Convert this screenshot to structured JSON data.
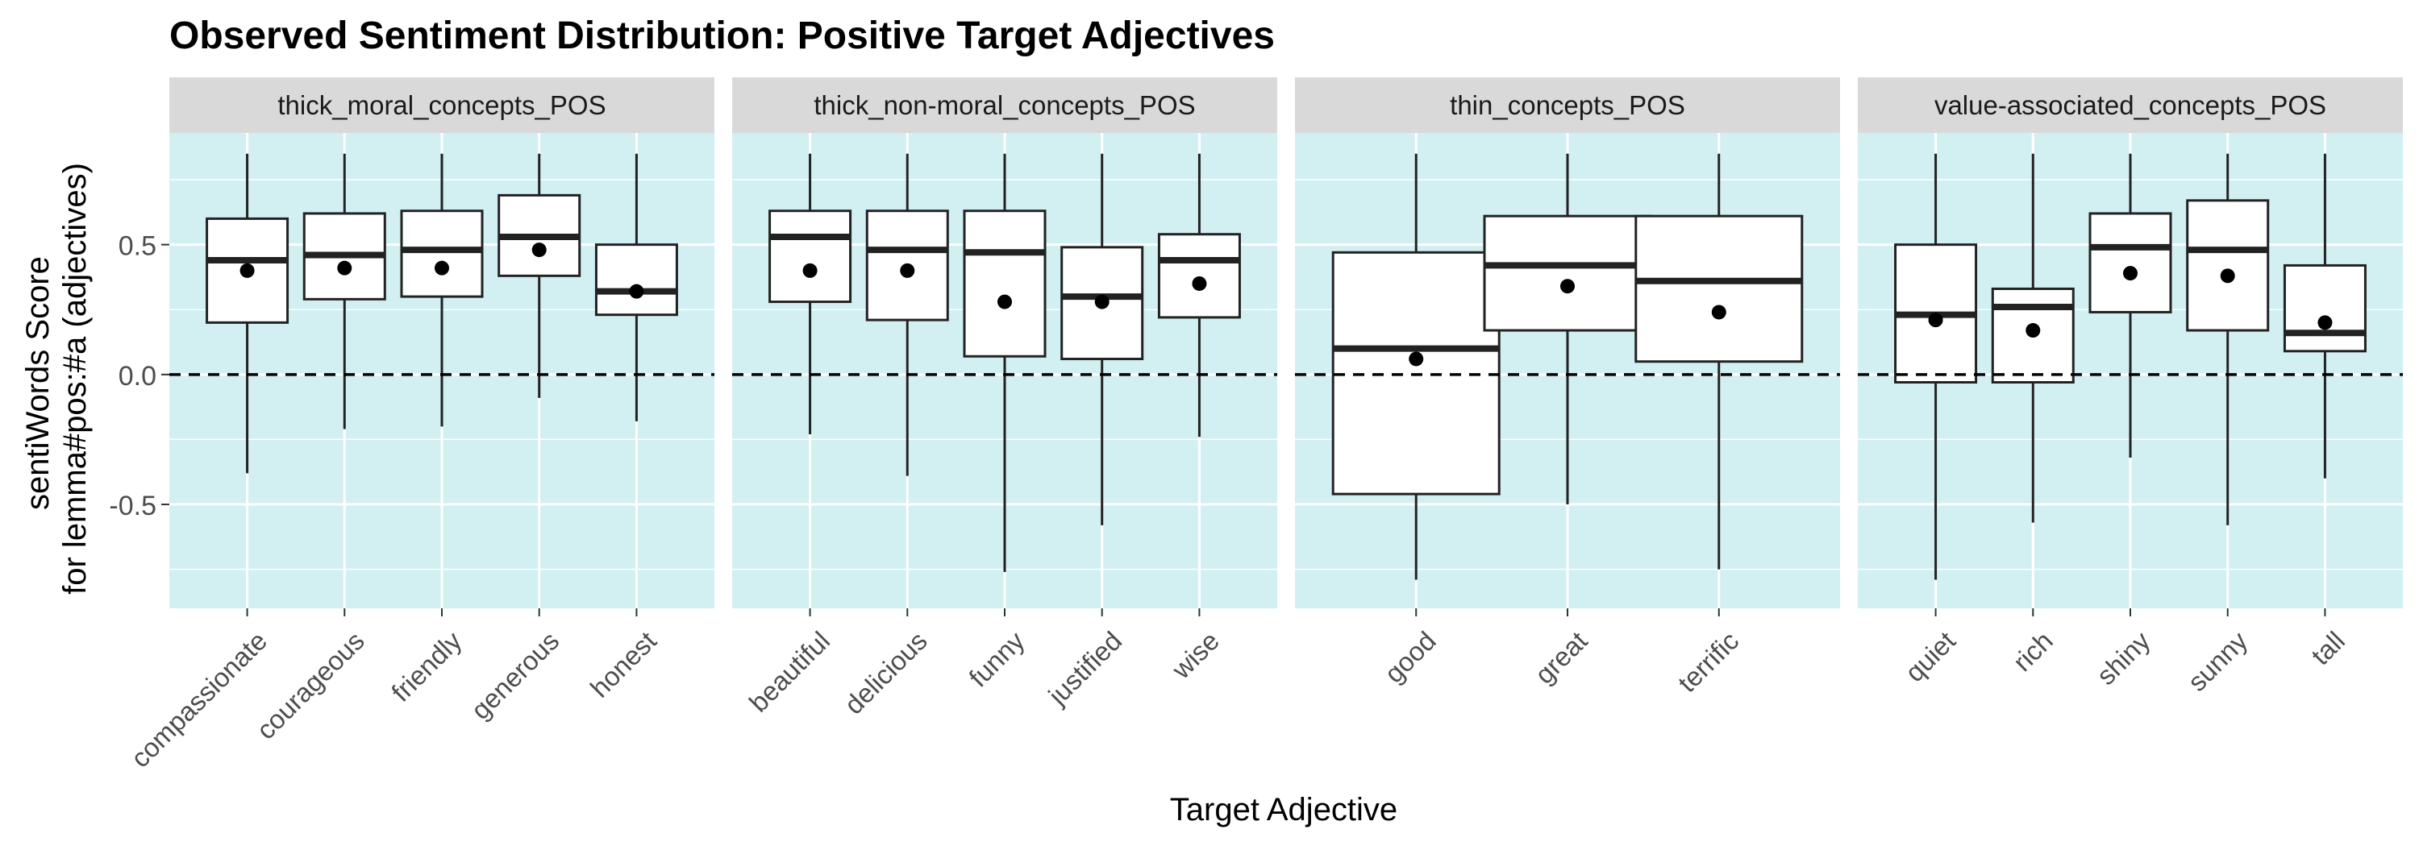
{
  "chart_data": {
    "type": "boxplot",
    "title": "Observed Sentiment Distribution: Positive Target Adjectives",
    "xlabel": "Target Adjective",
    "ylabel": [
      "sentiWords Score",
      "for lemma#pos:#a (adjectives)"
    ],
    "ylim": [
      -0.9,
      0.93
    ],
    "yticks": [
      -0.5,
      0.0,
      0.5
    ],
    "ytick_labels": [
      "-0.5",
      "0.0",
      "0.5"
    ],
    "reference_line": 0.0,
    "colors": {
      "panel_bg": "#d2eff1",
      "strip_bg": "#d9d9d9",
      "box_fill": "#ffffff",
      "ink": "#222222",
      "grid": "#ffffff"
    },
    "panels": [
      {
        "name": "thick_moral_concepts_POS",
        "boxes": [
          {
            "label": "compassionate",
            "min": -0.38,
            "q1": 0.2,
            "median": 0.44,
            "q3": 0.6,
            "max": 0.85,
            "mean": 0.4
          },
          {
            "label": "courageous",
            "min": -0.21,
            "q1": 0.29,
            "median": 0.46,
            "q3": 0.62,
            "max": 0.85,
            "mean": 0.41
          },
          {
            "label": "friendly",
            "min": -0.2,
            "q1": 0.3,
            "median": 0.48,
            "q3": 0.63,
            "max": 0.85,
            "mean": 0.41
          },
          {
            "label": "generous",
            "min": -0.09,
            "q1": 0.38,
            "median": 0.53,
            "q3": 0.69,
            "max": 0.85,
            "mean": 0.48
          },
          {
            "label": "honest",
            "min": -0.18,
            "q1": 0.23,
            "median": 0.32,
            "q3": 0.5,
            "max": 0.85,
            "mean": 0.32
          }
        ]
      },
      {
        "name": "thick_non-moral_concepts_POS",
        "boxes": [
          {
            "label": "beautiful",
            "min": -0.23,
            "q1": 0.28,
            "median": 0.53,
            "q3": 0.63,
            "max": 0.85,
            "mean": 0.4
          },
          {
            "label": "delicious",
            "min": -0.39,
            "q1": 0.21,
            "median": 0.48,
            "q3": 0.63,
            "max": 0.85,
            "mean": 0.4
          },
          {
            "label": "funny",
            "min": -0.76,
            "q1": 0.07,
            "median": 0.47,
            "q3": 0.63,
            "max": 0.85,
            "mean": 0.28
          },
          {
            "label": "justified",
            "min": -0.58,
            "q1": 0.06,
            "median": 0.3,
            "q3": 0.49,
            "max": 0.85,
            "mean": 0.28
          },
          {
            "label": "wise",
            "min": -0.24,
            "q1": 0.22,
            "median": 0.44,
            "q3": 0.54,
            "max": 0.85,
            "mean": 0.35
          }
        ]
      },
      {
        "name": "thin_concepts_POS",
        "boxes": [
          {
            "label": "good",
            "min": -0.79,
            "q1": -0.46,
            "median": 0.1,
            "q3": 0.47,
            "max": 0.85,
            "mean": 0.06
          },
          {
            "label": "great",
            "min": -0.5,
            "q1": 0.17,
            "median": 0.42,
            "q3": 0.61,
            "max": 0.85,
            "mean": 0.34
          },
          {
            "label": "terrific",
            "min": -0.75,
            "q1": 0.05,
            "median": 0.36,
            "q3": 0.61,
            "max": 0.85,
            "mean": 0.24
          }
        ]
      },
      {
        "name": "value-associated_concepts_POS",
        "boxes": [
          {
            "label": "quiet",
            "min": -0.79,
            "q1": -0.03,
            "median": 0.23,
            "q3": 0.5,
            "max": 0.85,
            "mean": 0.21
          },
          {
            "label": "rich",
            "min": -0.57,
            "q1": -0.03,
            "median": 0.26,
            "q3": 0.33,
            "max": 0.85,
            "mean": 0.17
          },
          {
            "label": "shiny",
            "min": -0.32,
            "q1": 0.24,
            "median": 0.49,
            "q3": 0.62,
            "max": 0.85,
            "mean": 0.39
          },
          {
            "label": "sunny",
            "min": -0.58,
            "q1": 0.17,
            "median": 0.48,
            "q3": 0.67,
            "max": 0.85,
            "mean": 0.38
          },
          {
            "label": "tall",
            "min": -0.4,
            "q1": 0.09,
            "median": 0.16,
            "q3": 0.42,
            "max": 0.85,
            "mean": 0.2
          }
        ]
      }
    ]
  }
}
